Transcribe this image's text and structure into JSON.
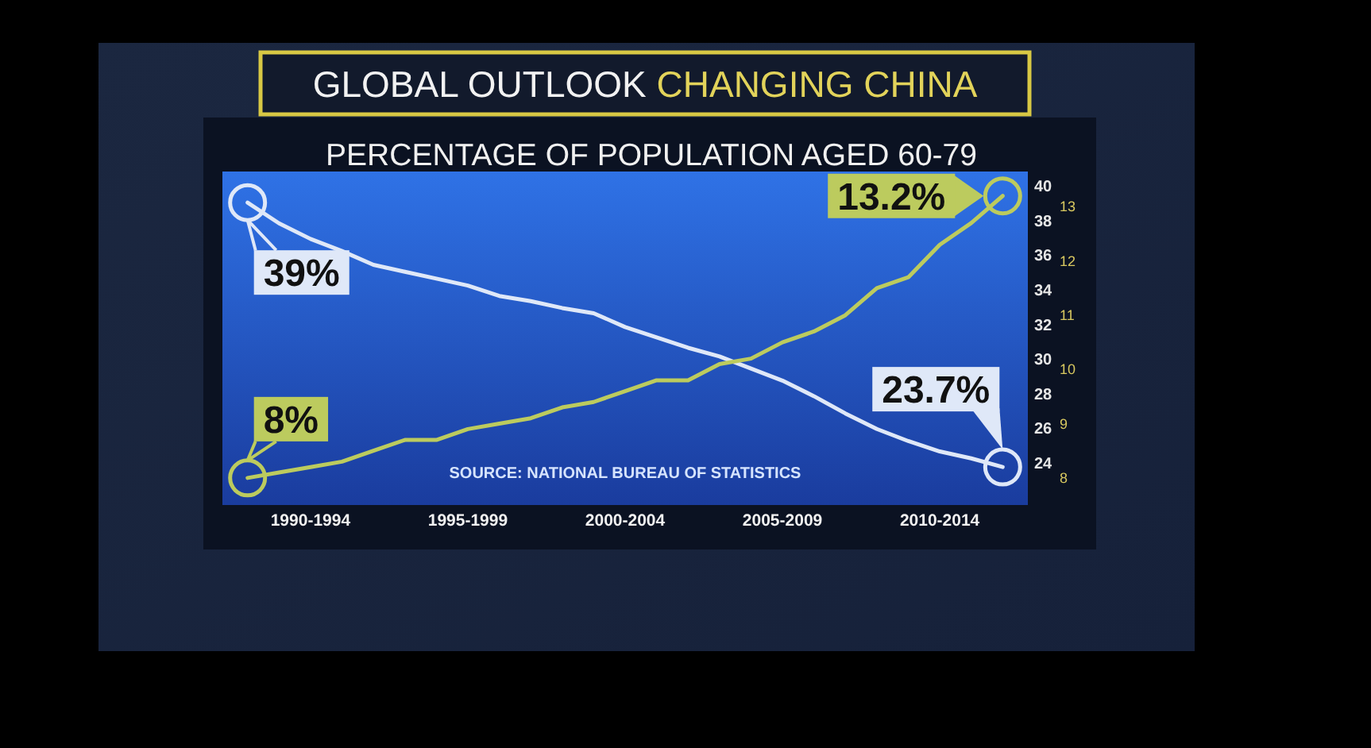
{
  "chart_data": {
    "type": "line",
    "title": "GLOBAL OUTLOOK CHANGING CHINA",
    "subtitle": "PERCENTAGE OF POPULATION AGED 60-79",
    "annotations": [
      "SOURCE: NATIONAL BUREAU OF STATISTICS"
    ],
    "categories": [
      null,
      null,
      "1990-1994",
      null,
      null,
      null,
      null,
      "1995-1999",
      null,
      null,
      null,
      null,
      "2000-2004",
      null,
      null,
      null,
      null,
      "2005-2009",
      null,
      null,
      null,
      null,
      "2010-2014",
      null,
      null
    ],
    "ylim": [
      21.5,
      40.8
    ],
    "yticks": [
      24,
      26,
      28,
      30,
      32,
      34,
      36,
      38,
      40
    ],
    "y2lim": [
      7.5,
      13.65
    ],
    "y2ticks": [
      8,
      9,
      10,
      11,
      12,
      13
    ],
    "series": [
      {
        "color": "#dfe8f8",
        "values": [
          39.0,
          37.8,
          36.9,
          36.2,
          35.4,
          35.0,
          34.6,
          34.2,
          33.6,
          33.3,
          32.9,
          32.6,
          31.8,
          31.2,
          30.6,
          30.1,
          29.4,
          28.7,
          27.8,
          26.8,
          25.9,
          25.2,
          24.6,
          24.2,
          23.7
        ],
        "value_labels": [
          "39%",
          null,
          null,
          null,
          null,
          null,
          null,
          null,
          null,
          null,
          null,
          null,
          null,
          null,
          null,
          null,
          null,
          null,
          null,
          null,
          null,
          null,
          null,
          null,
          "23.7%"
        ]
      },
      {
        "color": "#bccb5e",
        "axis": "y2",
        "values": [
          8.0,
          8.1,
          8.2,
          8.3,
          8.5,
          8.7,
          8.7,
          8.9,
          9.0,
          9.1,
          9.3,
          9.4,
          9.6,
          9.8,
          9.8,
          10.1,
          10.2,
          10.5,
          10.7,
          11.0,
          11.5,
          11.7,
          12.3,
          12.7,
          13.2
        ],
        "value_labels": [
          "8%",
          null,
          null,
          null,
          null,
          null,
          null,
          null,
          null,
          null,
          null,
          null,
          null,
          null,
          null,
          null,
          null,
          null,
          null,
          null,
          null,
          null,
          null,
          null,
          "13.2%"
        ]
      }
    ]
  }
}
